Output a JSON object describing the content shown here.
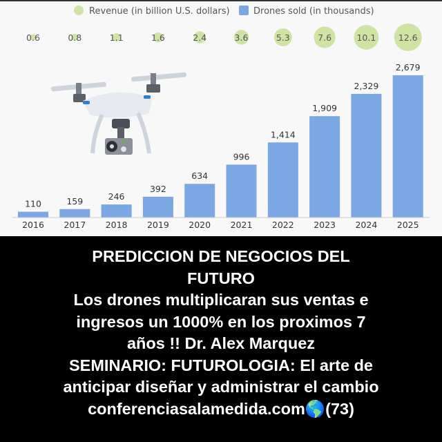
{
  "chart_data": {
    "type": "bar",
    "categories": [
      "2016",
      "2017",
      "2018",
      "2019",
      "2020",
      "2021",
      "2022",
      "2023",
      "2024",
      "2025"
    ],
    "series": [
      {
        "name": "Drones sold (in thousands)",
        "values": [
          110,
          159,
          246,
          392,
          634,
          996,
          1414,
          1909,
          2329,
          2679
        ],
        "color": "#7ba7e3",
        "mark": "bar"
      },
      {
        "name": "Revenue (in billion U.S. dollars)",
        "values": [
          0.6,
          0.8,
          1.1,
          1.6,
          2.4,
          3.6,
          5.3,
          7.6,
          10.1,
          12.6
        ],
        "color": "#cfe3a3",
        "mark": "bubble"
      }
    ],
    "value_labels": [
      "110",
      "159",
      "246",
      "392",
      "634",
      "996",
      "1,414",
      "1,909",
      "2,329",
      "2,679"
    ],
    "revenue_labels": [
      "0.6",
      "0.8",
      "1.1",
      "1.6",
      "2.4",
      "3.6",
      "5.3",
      "7.6",
      "10.1",
      "12.6"
    ],
    "legend": {
      "placement": "top",
      "items": [
        "Revenue (in billion U.S. dollars)",
        "Drones sold (in thousands)"
      ]
    },
    "ylim": [
      0,
      2679
    ],
    "grid": false
  },
  "illustration": {
    "icon": "drone-icon"
  },
  "caption": {
    "lines": [
      "PREDICCION DE NEGOCIOS DEL",
      "FUTURO",
      "Los drones multiplicaran sus ventas e",
      "ingresos un 1000% en los proximos 7",
      "años !! Dr. Alex Marquez",
      "SEMINARIO: FUTUROLOGIA:  El arte de",
      "anticipar diseñar y administrar el cambio",
      "conferenciasalamedida.com",
      "(73)"
    ],
    "globe_icon": "globe-icon"
  }
}
